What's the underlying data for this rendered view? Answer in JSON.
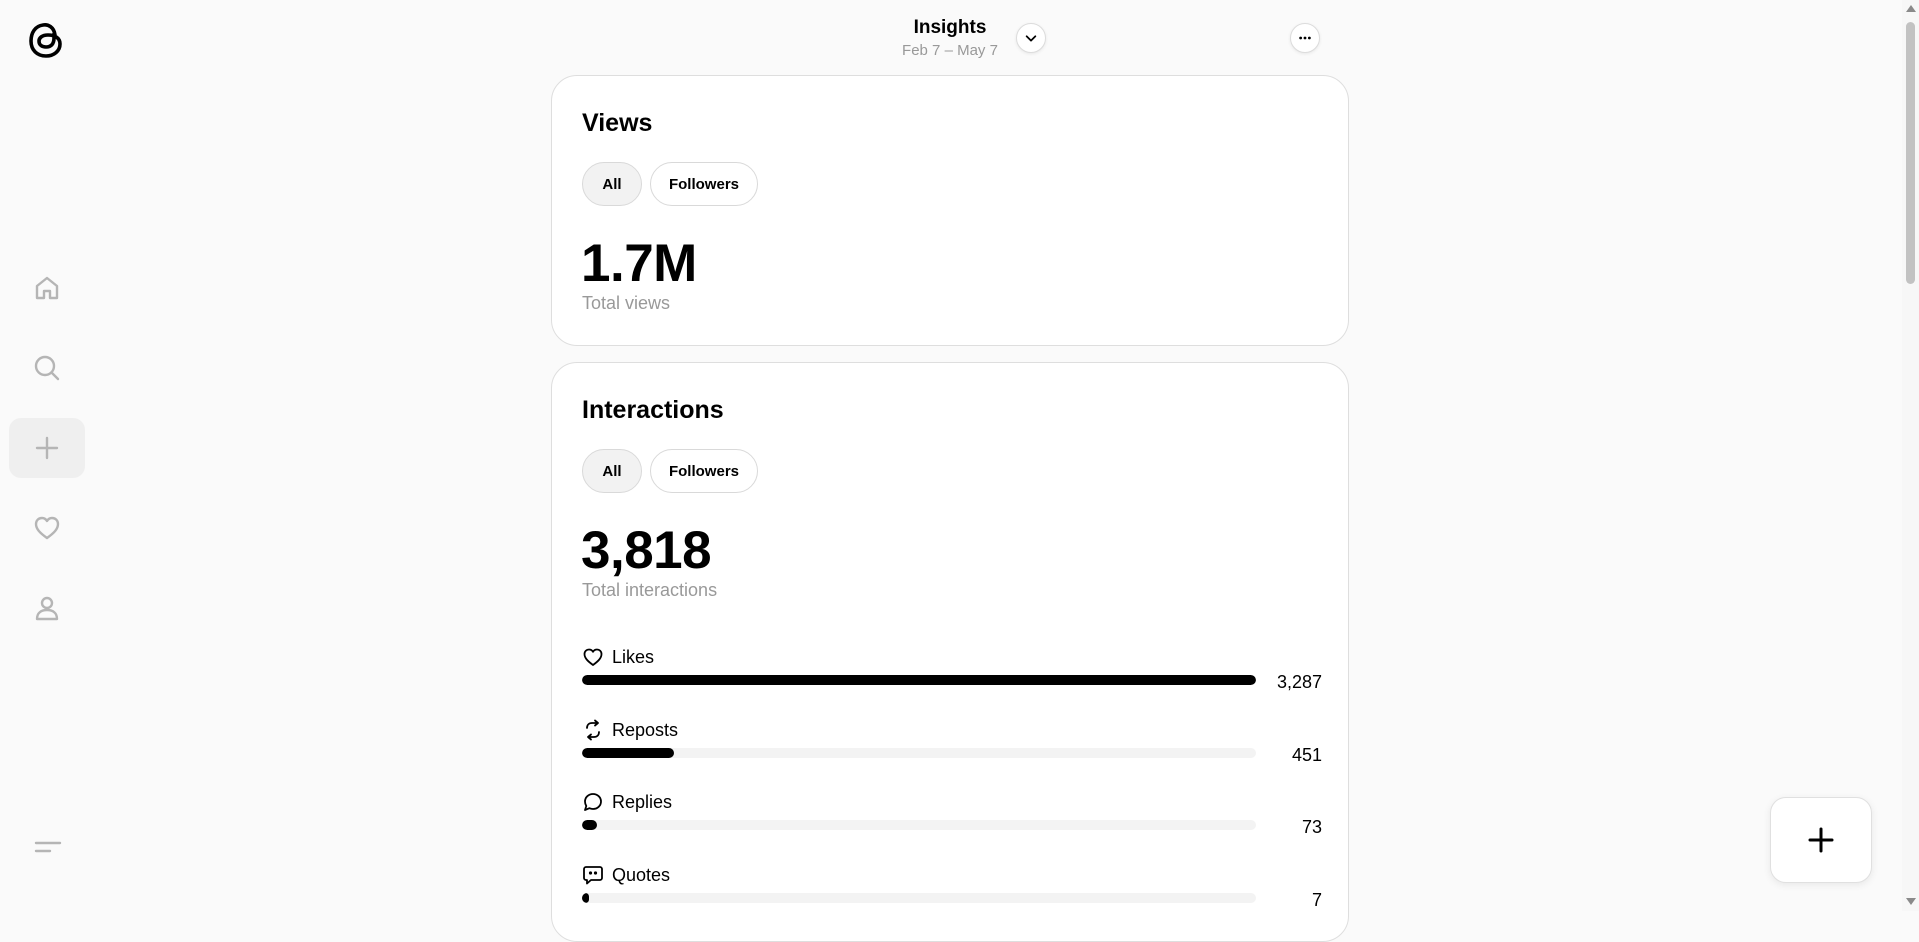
{
  "header": {
    "title": "Insights",
    "date_range": "Feb 7 – May 7"
  },
  "sidebar": {
    "items": [
      {
        "icon": "home-icon"
      },
      {
        "icon": "search-icon"
      },
      {
        "icon": "plus-icon",
        "active": true
      },
      {
        "icon": "heart-icon"
      },
      {
        "icon": "profile-icon"
      }
    ]
  },
  "views": {
    "title": "Views",
    "filters": [
      "All",
      "Followers"
    ],
    "selected_filter": "All",
    "total": "1.7M",
    "total_label": "Total views"
  },
  "interactions": {
    "title": "Interactions",
    "filters": [
      "All",
      "Followers"
    ],
    "selected_filter": "All",
    "total": "3,818",
    "total_label": "Total interactions",
    "metrics": [
      {
        "label": "Likes",
        "icon": "heart-icon",
        "value": "3,287",
        "fraction": 1.0
      },
      {
        "label": "Reposts",
        "icon": "repost-icon",
        "value": "451",
        "fraction": 0.137
      },
      {
        "label": "Replies",
        "icon": "reply-icon",
        "value": "73",
        "fraction": 0.022
      },
      {
        "label": "Quotes",
        "icon": "quote-icon",
        "value": "7",
        "fraction": 0.002
      }
    ]
  },
  "colors": {
    "background": "#fafafa",
    "card": "#ffffff",
    "bar": "#000000",
    "muted_text": "#999999"
  }
}
